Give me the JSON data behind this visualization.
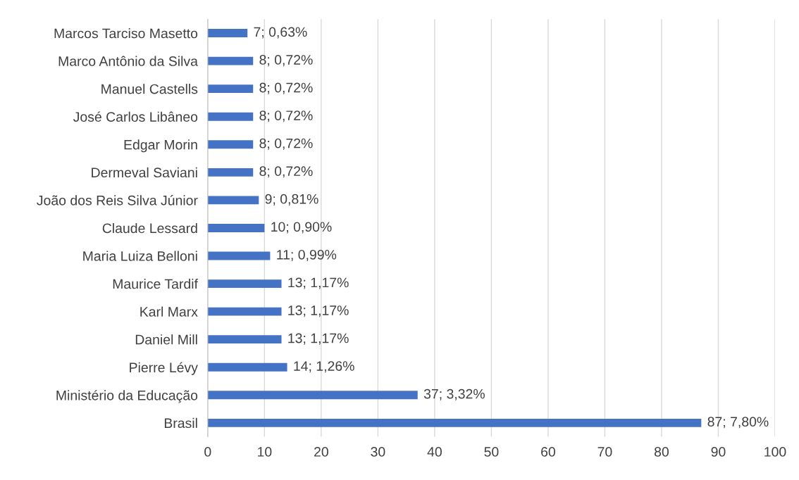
{
  "chart_data": {
    "type": "bar",
    "orientation": "horizontal",
    "categories": [
      "Marcos Tarciso Masetto",
      "Marco Antônio da Silva",
      "Manuel Castells",
      "José Carlos Libâneo",
      "Edgar Morin",
      "Dermeval Saviani",
      "João dos Reis Silva Júnior",
      "Claude Lessard",
      "Maria Luiza Belloni",
      "Maurice Tardif",
      "Karl Marx",
      "Daniel Mill",
      "Pierre Lévy",
      "Ministério da Educação",
      "Brasil"
    ],
    "values": [
      7,
      8,
      8,
      8,
      8,
      8,
      9,
      10,
      11,
      13,
      13,
      13,
      14,
      37,
      87
    ],
    "value_labels": [
      "7; 0,63%",
      "8; 0,72%",
      "8; 0,72%",
      "8; 0,72%",
      "8; 0,72%",
      "8; 0,72%",
      "9; 0,81%",
      "10; 0,90%",
      "11; 0,99%",
      "13; 1,17%",
      "13; 1,17%",
      "13; 1,17%",
      "14; 1,26%",
      "37; 3,32%",
      "87; 7,80%"
    ],
    "color": "#4472c4",
    "xlim": [
      0,
      100
    ],
    "xticks": [
      0,
      10,
      20,
      30,
      40,
      50,
      60,
      70,
      80,
      90,
      100
    ],
    "grid": "x",
    "legend": false
  }
}
